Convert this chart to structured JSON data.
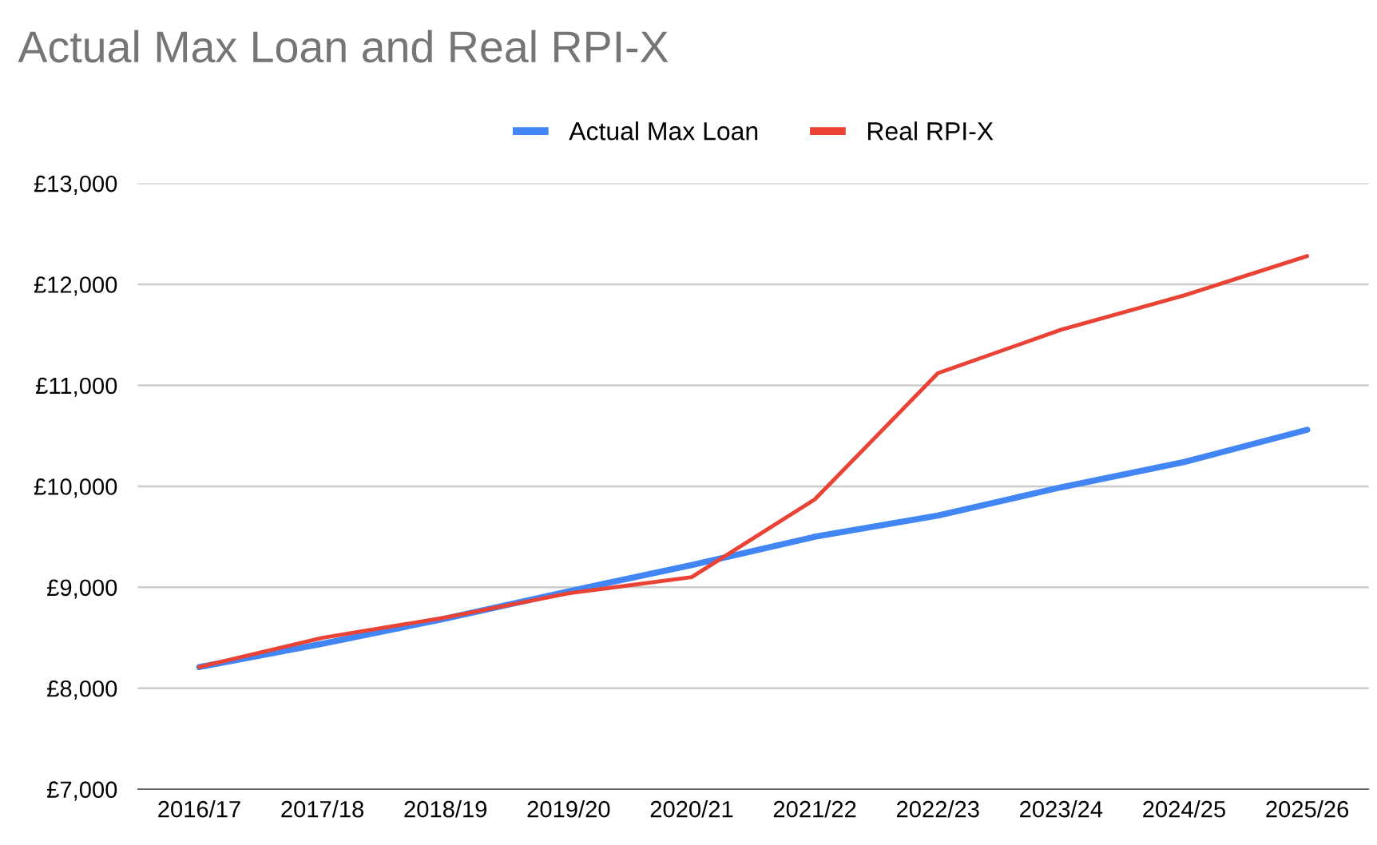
{
  "chart_data": {
    "type": "line",
    "title": "Actual Max Loan and Real RPI-X",
    "categories": [
      "2016/17",
      "2017/18",
      "2018/19",
      "2019/20",
      "2020/21",
      "2021/22",
      "2022/23",
      "2023/24",
      "2024/25",
      "2025/26"
    ],
    "series": [
      {
        "name": "Actual Max Loan",
        "color": "#4285f4",
        "values": [
          8210,
          8440,
          8690,
          8960,
          9220,
          9500,
          9710,
          9990,
          10240,
          10560
        ]
      },
      {
        "name": "Real RPI-X",
        "color": "#ea4335",
        "values": [
          8210,
          8500,
          8700,
          8940,
          9100,
          9870,
          11120,
          11550,
          11890,
          12280
        ]
      }
    ],
    "ylim": [
      7000,
      13000
    ],
    "yticks": [
      {
        "value": 7000,
        "label": "£7,000"
      },
      {
        "value": 8000,
        "label": "£8,000"
      },
      {
        "value": 9000,
        "label": "£9,000"
      },
      {
        "value": 10000,
        "label": "£10,000"
      },
      {
        "value": 11000,
        "label": "£11,000"
      },
      {
        "value": 12000,
        "label": "£12,000"
      },
      {
        "value": 13000,
        "label": "£13,000"
      }
    ],
    "grid": "y",
    "legend": "top",
    "marker": "none",
    "line_style": "solid"
  }
}
